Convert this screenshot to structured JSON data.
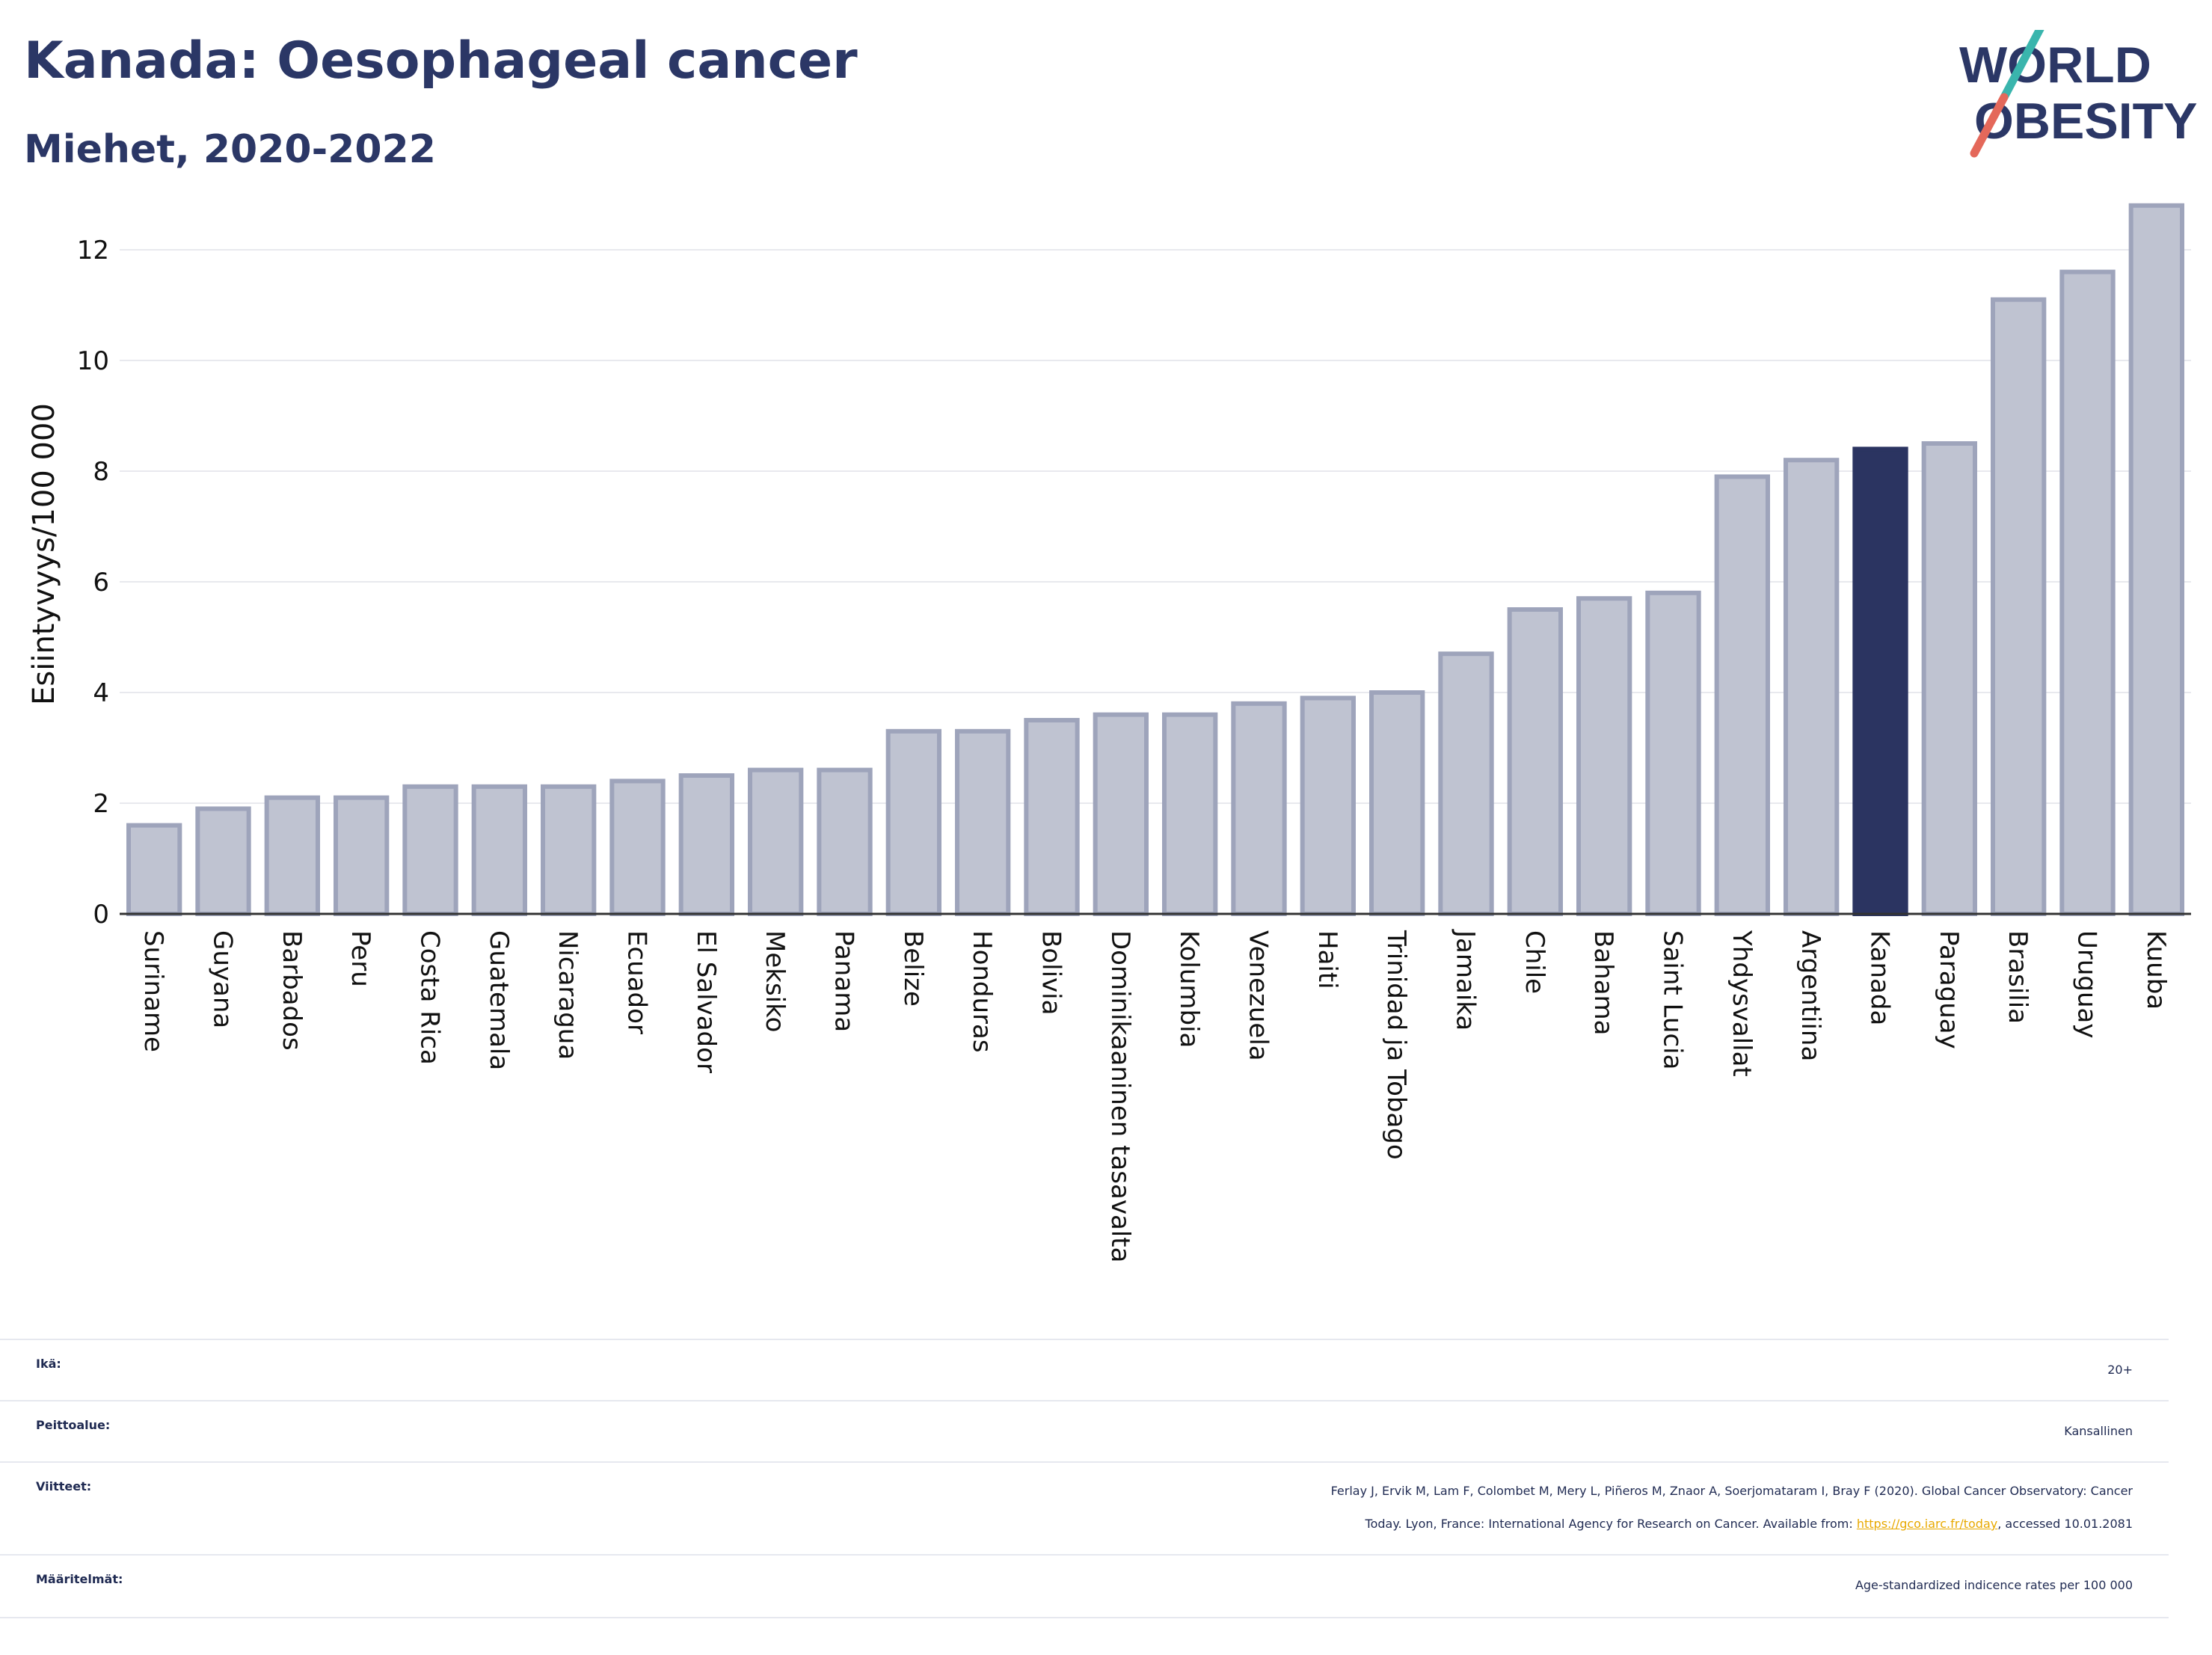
{
  "header": {
    "title": "Kanada: Oesophageal cancer",
    "subtitle": "Miehet, 2020-2022"
  },
  "logo": {
    "line1": "WORLD",
    "line2": "OBESITY"
  },
  "colors": {
    "bar": "#bfc3d1",
    "bar_border": "#9ea4bb",
    "highlight": "#2b3461",
    "axis_text": "#111111",
    "grid": "#e8e9ee"
  },
  "chart_data": {
    "type": "bar",
    "ylabel": "Esiintyvyys/100 000",
    "ylim": [
      0,
      13
    ],
    "yticks": [
      0,
      2,
      4,
      6,
      8,
      10,
      12
    ],
    "highlight": "Kanada",
    "categories": [
      "Suriname",
      "Guyana",
      "Barbados",
      "Peru",
      "Costa Rica",
      "Guatemala",
      "Nicaragua",
      "Ecuador",
      "El Salvador",
      "Meksiko",
      "Panama",
      "Belize",
      "Honduras",
      "Bolivia",
      "Dominikaaninen tasavalta",
      "Kolumbia",
      "Venezuela",
      "Haiti",
      "Trinidad ja Tobago",
      "Jamaika",
      "Chile",
      "Bahama",
      "Saint Lucia",
      "Yhdysvallat",
      "Argentiina",
      "Kanada",
      "Paraguay",
      "Brasilia",
      "Uruguay",
      "Kuuba"
    ],
    "values": [
      1.6,
      1.9,
      2.1,
      2.1,
      2.3,
      2.3,
      2.3,
      2.4,
      2.5,
      2.6,
      2.6,
      3.3,
      3.3,
      3.5,
      3.6,
      3.6,
      3.8,
      3.9,
      4.0,
      4.7,
      5.5,
      5.7,
      5.8,
      7.9,
      8.2,
      8.4,
      8.5,
      11.1,
      11.6,
      12.8
    ]
  },
  "info": {
    "age_label": "Ikä:",
    "age_value": "20+",
    "coverage_label": "Peittoalue:",
    "coverage_value": "Kansallinen",
    "refs_label": "Viitteet:",
    "refs_line1": "Ferlay J, Ervik M, Lam F, Colombet M, Mery L, Piñeros M, Znaor A, Soerjomataram I, Bray F (2020). Global Cancer Observatory: Cancer",
    "refs_line2_pre": "Today. Lyon, France: International Agency for Research on Cancer. Available from: ",
    "refs_link": "https://gco.iarc.fr/today",
    "refs_line2_post": ", accessed 10.01.2081",
    "defs_label": "Määritelmät:",
    "defs_value": "Age-standardized indicence rates per 100 000"
  }
}
